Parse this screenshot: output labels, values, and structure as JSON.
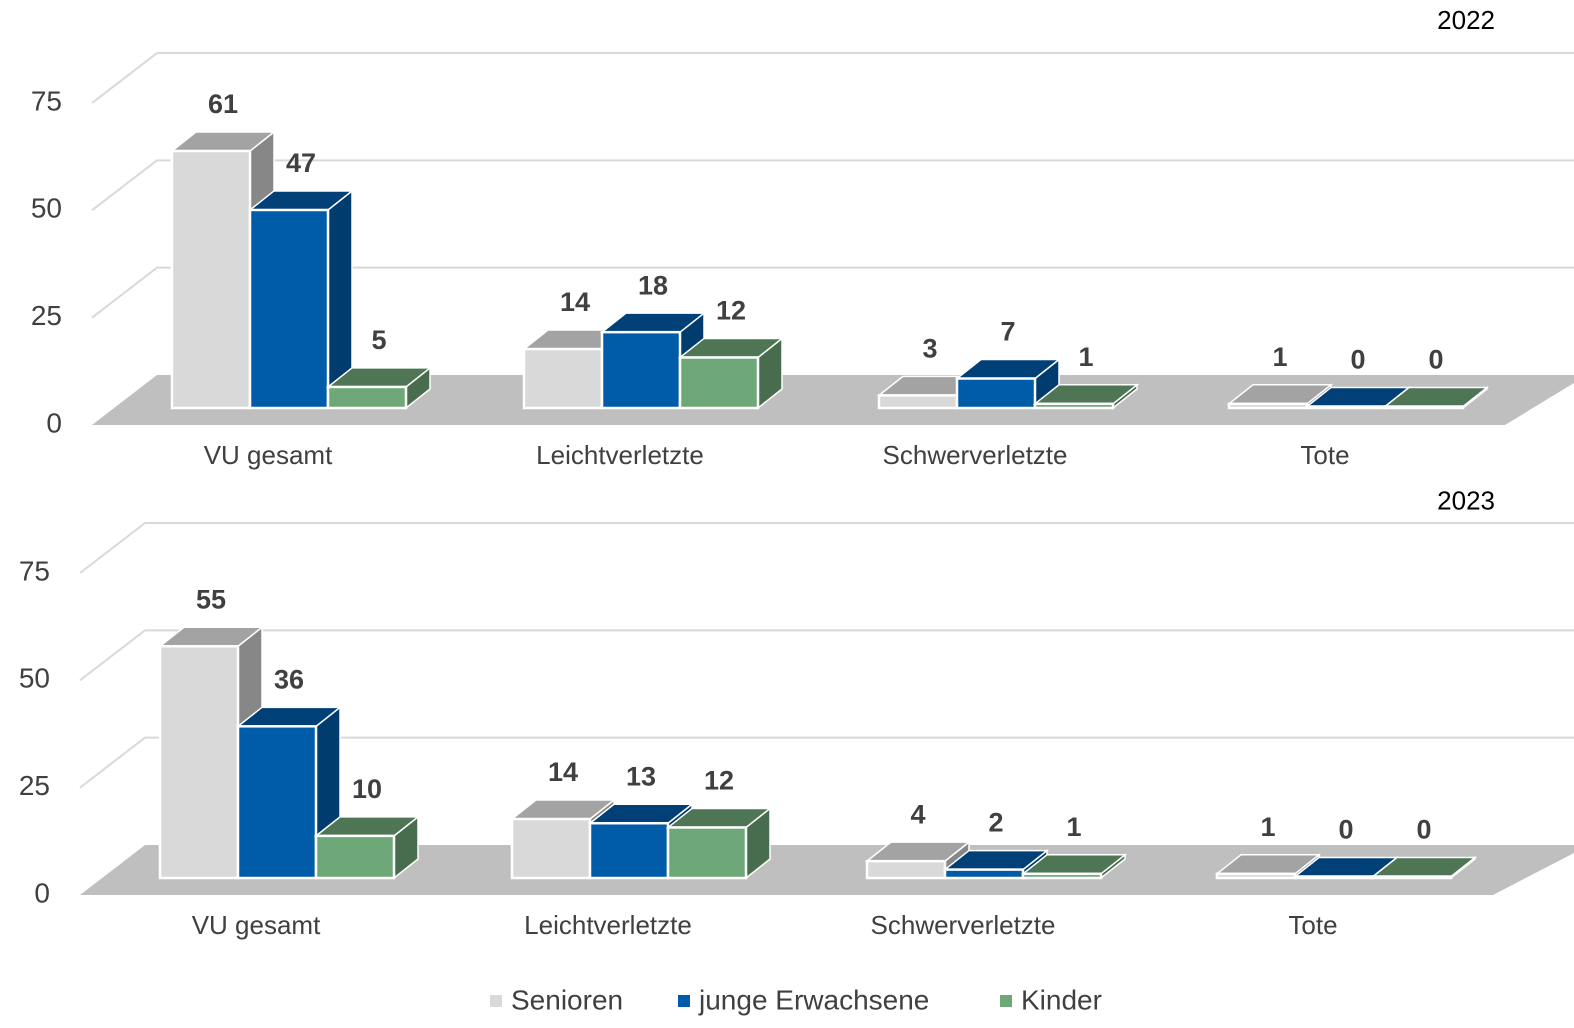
{
  "chart_data": [
    {
      "type": "bar3d",
      "title": "2022",
      "categories": [
        "VU gesamt",
        "Leichtverletzte",
        "Schwerverletzte",
        "Tote"
      ],
      "series": [
        {
          "name": "Senioren",
          "color": "#d9d9d9",
          "values": [
            61,
            14,
            3,
            1
          ]
        },
        {
          "name": "junge Erwachsene",
          "color": "#005ca8",
          "values": [
            47,
            18,
            7,
            0
          ]
        },
        {
          "name": "Kinder",
          "color": "#6fa878",
          "values": [
            5,
            12,
            1,
            0
          ]
        }
      ],
      "ylim": [
        0,
        75
      ],
      "yticks": [
        0,
        25,
        50,
        75
      ],
      "grid": true
    },
    {
      "type": "bar3d",
      "title": "2023",
      "categories": [
        "VU gesamt",
        "Leichtverletzte",
        "Schwerverletzte",
        "Tote"
      ],
      "series": [
        {
          "color": "#d9d9d9",
          "values": [
            55,
            14,
            4,
            1
          ]
        },
        {
          "color": "#005ca8",
          "values": [
            36,
            13,
            2,
            0
          ]
        },
        {
          "color": "#6fa878",
          "values": [
            10,
            12,
            1,
            0
          ]
        }
      ],
      "ylim": [
        0,
        75
      ],
      "yticks": [
        0,
        25,
        50,
        75
      ],
      "grid": true
    }
  ]
}
